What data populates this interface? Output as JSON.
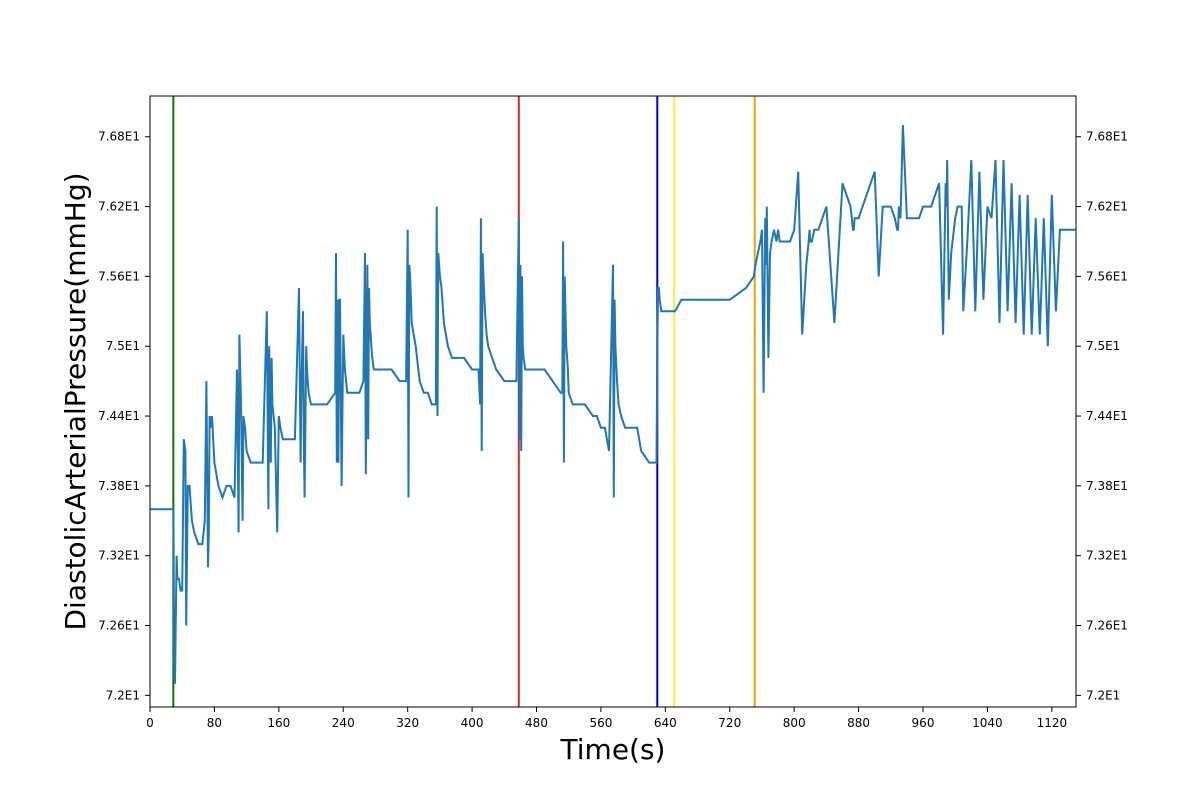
{
  "chart_data": {
    "type": "line",
    "title": "",
    "xlabel": "Time(s)",
    "ylabel": "DiastolicArterialPressure(mmHg)",
    "xlim": [
      0,
      1150
    ],
    "ylim": [
      71.9,
      77.15
    ],
    "x_ticks": [
      0,
      80,
      160,
      240,
      320,
      400,
      480,
      560,
      640,
      720,
      800,
      880,
      960,
      1040,
      1120
    ],
    "y_ticks": [
      72.0,
      72.6,
      73.2,
      73.8,
      74.4,
      75.0,
      75.6,
      76.2,
      76.8
    ],
    "y_tick_labels": [
      "7.2E1",
      "7.26E1",
      "7.32E1",
      "7.38E1",
      "7.44E1",
      "7.5E1",
      "7.56E1",
      "7.62E1",
      "7.68E1"
    ],
    "grid": false,
    "series_color": "#1f77b4",
    "vertical_lines": [
      {
        "x": 29,
        "color": "#007a00"
      },
      {
        "x": 458,
        "color": "#d62728"
      },
      {
        "x": 630,
        "color": "#0000ee"
      },
      {
        "x": 651,
        "color": "#ffee33"
      },
      {
        "x": 751,
        "color": "#e6a700"
      }
    ],
    "series": [
      {
        "x": [
          0,
          29,
          30,
          31,
          33,
          34,
          36,
          38,
          40,
          42,
          44,
          45,
          47,
          49,
          50,
          52,
          55,
          60,
          65,
          68,
          70,
          72,
          73,
          74,
          75,
          77,
          80,
          85,
          90,
          95,
          100,
          105,
          108,
          110,
          111,
          113,
          115,
          116,
          118,
          120,
          125,
          130,
          135,
          140,
          145,
          147,
          148,
          150,
          151,
          152,
          155,
          158,
          160,
          162,
          165,
          170,
          175,
          180,
          185,
          187,
          188,
          190,
          191,
          192,
          194,
          195,
          197,
          200,
          205,
          210,
          215,
          220,
          230,
          231,
          232,
          233,
          234,
          235,
          236,
          238,
          240,
          242,
          245,
          250,
          260,
          265,
          267,
          268,
          270,
          271,
          272,
          273,
          274,
          276,
          278,
          280,
          285,
          290,
          300,
          310,
          318,
          320,
          321,
          322,
          323,
          325,
          330,
          335,
          340,
          345,
          350,
          355,
          356,
          357,
          358,
          360,
          362,
          365,
          370,
          375,
          380,
          390,
          400,
          408,
          410,
          411,
          412,
          413,
          414,
          416,
          418,
          420,
          425,
          430,
          440,
          450,
          455,
          458,
          459,
          460,
          461,
          462,
          463,
          464,
          466,
          470,
          480,
          490,
          500,
          510,
          512,
          513,
          514,
          515,
          517,
          519,
          520,
          525,
          530,
          540,
          550,
          555,
          560,
          565,
          570,
          575,
          576,
          577,
          578,
          580,
          582,
          585,
          590,
          595,
          600,
          605,
          610,
          620,
          628,
          629,
          630,
          631,
          632,
          633,
          635,
          640,
          645,
          650,
          652,
          660,
          680,
          700,
          710,
          712,
          720,
          740,
          750,
          752,
          755,
          758,
          760,
          762,
          764,
          765,
          766,
          768,
          770,
          772,
          775,
          778,
          780,
          782,
          785,
          788,
          790,
          795,
          800,
          805,
          810,
          815,
          818,
          819,
          820,
          822,
          825,
          828,
          830,
          835,
          840,
          850,
          860,
          870,
          873,
          874,
          875,
          876,
          878,
          880,
          885,
          890,
          900,
          905,
          910,
          920,
          925,
          928,
          929,
          930,
          932,
          935,
          940,
          945,
          950,
          955,
          960,
          970,
          980,
          985,
          988,
          989,
          990,
          992,
          995,
          1000,
          1003,
          1005,
          1008,
          1010,
          1015,
          1020,
          1025,
          1030,
          1035,
          1040,
          1045,
          1050,
          1055,
          1060,
          1065,
          1070,
          1075,
          1080,
          1085,
          1090,
          1095,
          1100,
          1105,
          1110,
          1115,
          1120,
          1125,
          1130,
          1135,
          1140,
          1145,
          1150
        ],
        "y": [
          73.6,
          73.6,
          72.3,
          72.1,
          73.2,
          73.0,
          73.0,
          72.9,
          72.9,
          74.2,
          74.1,
          72.6,
          73.8,
          73.8,
          73.7,
          73.5,
          73.4,
          73.3,
          73.3,
          73.5,
          74.7,
          73.1,
          73.4,
          74.4,
          74.3,
          74.4,
          74.0,
          73.8,
          73.7,
          73.8,
          73.8,
          73.7,
          74.8,
          73.4,
          75.1,
          74.5,
          73.5,
          74.4,
          74.3,
          74.1,
          74.0,
          74.0,
          74.0,
          74.0,
          75.3,
          73.6,
          75.0,
          74.0,
          74.9,
          74.5,
          74.3,
          73.4,
          74.4,
          74.3,
          74.2,
          74.2,
          74.2,
          74.2,
          75.5,
          74.0,
          74.6,
          75.3,
          74.2,
          73.7,
          75.0,
          74.8,
          74.6,
          74.5,
          74.5,
          74.5,
          74.5,
          74.5,
          74.6,
          75.8,
          74.0,
          75.4,
          74.0,
          75.4,
          75.4,
          73.8,
          75.1,
          74.8,
          74.6,
          74.6,
          74.6,
          74.7,
          75.8,
          73.9,
          75.7,
          74.2,
          75.5,
          75.2,
          75.1,
          74.9,
          74.8,
          74.8,
          74.8,
          74.8,
          74.8,
          74.7,
          74.7,
          76.0,
          73.7,
          75.7,
          75.6,
          75.2,
          75.0,
          74.7,
          74.6,
          74.6,
          74.5,
          74.5,
          76.2,
          74.4,
          75.8,
          75.6,
          75.5,
          75.2,
          75.0,
          74.9,
          74.9,
          74.9,
          74.8,
          74.8,
          74.5,
          76.1,
          74.1,
          75.8,
          75.6,
          75.3,
          75.1,
          75.0,
          74.9,
          74.8,
          74.7,
          74.7,
          74.7,
          76.1,
          74.2,
          75.7,
          74.1,
          75.6,
          75.0,
          74.9,
          74.8,
          74.8,
          74.8,
          74.8,
          74.7,
          74.6,
          74.6,
          75.9,
          74.0,
          75.6,
          75.0,
          74.8,
          74.6,
          74.5,
          74.5,
          74.5,
          74.4,
          74.4,
          74.3,
          74.3,
          74.1,
          75.7,
          73.7,
          75.4,
          75.0,
          74.7,
          74.5,
          74.4,
          74.3,
          74.3,
          74.3,
          74.3,
          74.1,
          74.0,
          74.0,
          74.0,
          75.0,
          75.5,
          75.5,
          75.4,
          75.3,
          75.3,
          75.3,
          75.3,
          75.3,
          75.4,
          75.4,
          75.4,
          75.4,
          75.4,
          75.4,
          75.5,
          75.6,
          75.7,
          75.8,
          75.9,
          76.0,
          74.6,
          76.1,
          75.7,
          76.2,
          74.9,
          75.8,
          75.9,
          76.0,
          75.9,
          76.0,
          75.9,
          75.9,
          75.9,
          75.9,
          75.9,
          76.0,
          76.5,
          75.1,
          75.7,
          75.9,
          76.0,
          75.9,
          75.9,
          76.0,
          76.0,
          76.0,
          76.1,
          76.2,
          75.2,
          76.4,
          76.2,
          76.0,
          76.0,
          76.1,
          76.1,
          76.1,
          76.1,
          76.2,
          76.3,
          76.5,
          75.6,
          76.2,
          76.2,
          76.1,
          76.0,
          76.0,
          76.2,
          76.1,
          76.9,
          76.1,
          76.1,
          76.1,
          76.1,
          76.2,
          76.2,
          76.4,
          75.1,
          76.4,
          76.2,
          76.6,
          75.4,
          75.8,
          76.1,
          76.2,
          76.2,
          76.2,
          75.3,
          75.9,
          76.6,
          75.3,
          76.5,
          75.4,
          76.2,
          76.1,
          76.6,
          75.2,
          76.6,
          75.3,
          76.4,
          75.2,
          76.3,
          75.1,
          76.3,
          75.1,
          76.1,
          75.1,
          76.1,
          75.0,
          76.3,
          75.3,
          76.0,
          76.0,
          76.0,
          76.0,
          76.0
        ]
      }
    ]
  }
}
